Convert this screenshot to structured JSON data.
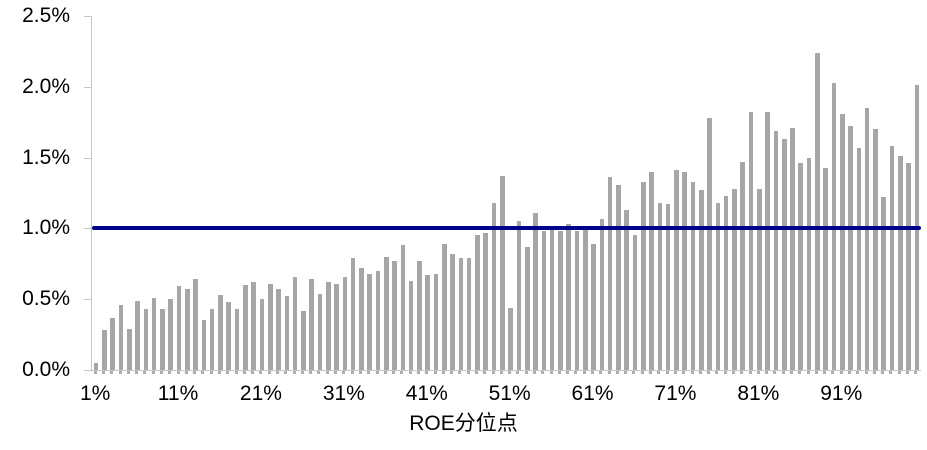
{
  "chart_data": {
    "type": "bar",
    "title": "",
    "xlabel": "ROE分位点",
    "ylabel": "",
    "x_unit": "ROE percentile (1%-100%)",
    "x_start": 1,
    "x_end": 100,
    "ylim": [
      0,
      2.5
    ],
    "ytick_values": [
      0,
      0.5,
      1.0,
      1.5,
      2.0,
      2.5
    ],
    "ytick_labels": [
      "0.0%",
      "0.5%",
      "1.0%",
      "1.5%",
      "2.0%",
      "2.5%"
    ],
    "xtick_positions": [
      1,
      11,
      21,
      31,
      41,
      51,
      61,
      71,
      81,
      91
    ],
    "xtick_labels": [
      "1%",
      "11%",
      "21%",
      "31%",
      "41%",
      "51%",
      "61%",
      "71%",
      "81%",
      "91%"
    ],
    "values_pct": [
      0.05,
      0.28,
      0.37,
      0.46,
      0.29,
      0.49,
      0.43,
      0.51,
      0.43,
      0.5,
      0.59,
      0.57,
      0.64,
      0.35,
      0.43,
      0.53,
      0.48,
      0.43,
      0.6,
      0.62,
      0.5,
      0.61,
      0.57,
      0.52,
      0.66,
      0.42,
      0.64,
      0.54,
      0.62,
      0.61,
      0.66,
      0.79,
      0.72,
      0.68,
      0.7,
      0.8,
      0.77,
      0.88,
      0.63,
      0.77,
      0.67,
      0.68,
      0.89,
      0.82,
      0.79,
      0.79,
      0.95,
      0.97,
      1.18,
      1.37,
      0.44,
      1.05,
      0.87,
      1.11,
      0.98,
      1.02,
      0.98,
      1.03,
      0.98,
      1.02,
      0.89,
      1.07,
      1.36,
      1.31,
      1.13,
      0.95,
      1.33,
      1.4,
      1.18,
      1.17,
      1.41,
      1.4,
      1.33,
      1.27,
      1.78,
      1.18,
      1.23,
      1.28,
      1.47,
      1.82,
      1.28,
      1.82,
      1.69,
      1.63,
      1.71,
      1.46,
      1.5,
      2.24,
      1.43,
      2.03,
      1.81,
      1.72,
      1.57,
      1.85,
      1.7,
      1.22,
      1.58,
      1.51,
      1.46,
      2.01
    ],
    "reference_line": {
      "value": 1.0,
      "color": "#00008b"
    },
    "bar_color": "#a6a6a6",
    "axis_color": "#c6c6c6",
    "text_color": "#000000",
    "grid": false,
    "legend_position": "none"
  }
}
